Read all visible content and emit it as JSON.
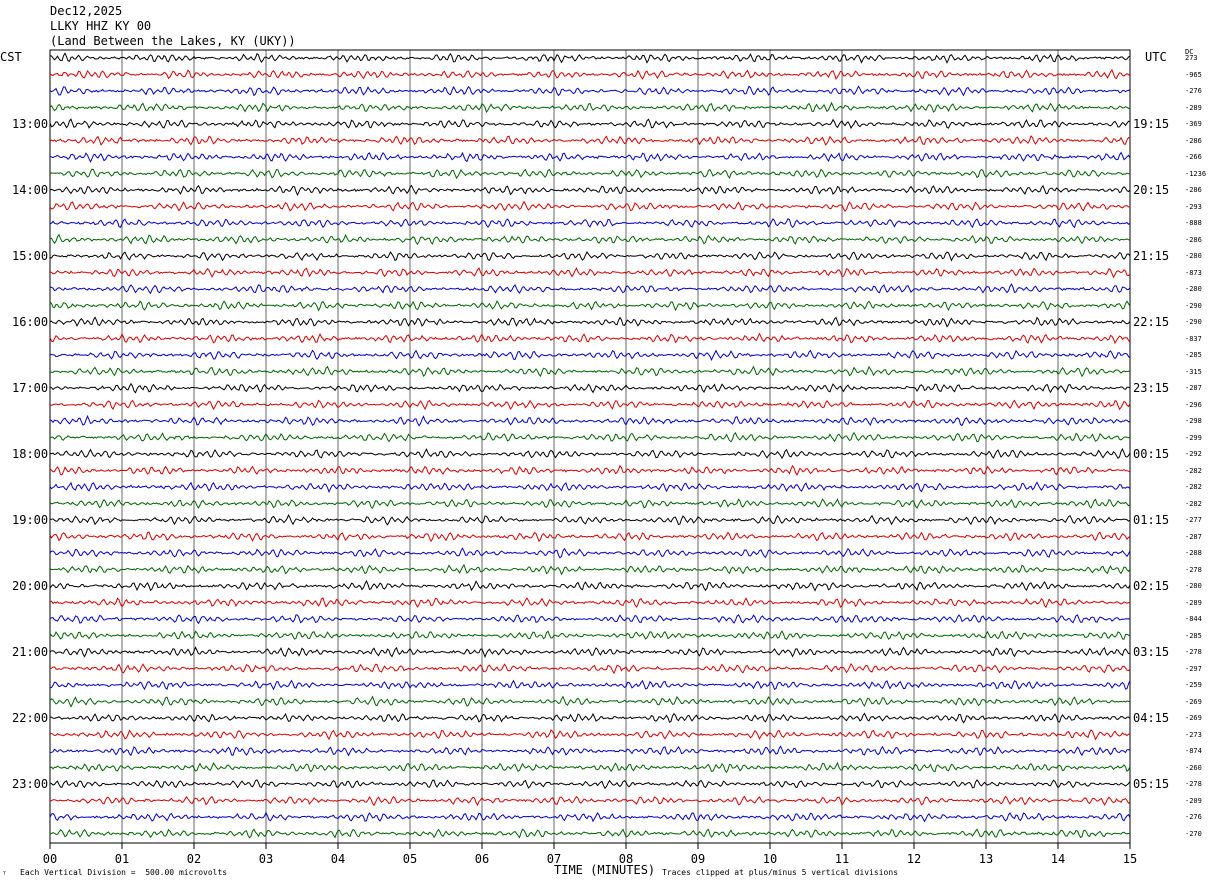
{
  "header": {
    "date": "Dec12,2025",
    "station": "LLKY HHZ KY 00",
    "location": "(Land Between the Lakes, KY (UKY))"
  },
  "left_axis_label": "CST",
  "right_axis_label": "UTC",
  "dc_label": "DC",
  "footer": {
    "scale_note": "Each Vertical Division =  500.00 microvolts",
    "clip_note": "Traces clipped at plus/minus 5 vertical divisions",
    "corner_mark": "ᵀ"
  },
  "colors": {
    "trace_cycle": [
      "#000000",
      "#d40000",
      "#0000c8",
      "#006400"
    ],
    "grid": "#000000",
    "background": "#ffffff"
  },
  "chart_data": {
    "type": "line",
    "title": "",
    "xlabel": "TIME (MINUTES)",
    "ylabel": "",
    "xlim": [
      0,
      15
    ],
    "x_ticks": [
      "00",
      "01",
      "02",
      "03",
      "04",
      "05",
      "06",
      "07",
      "08",
      "09",
      "10",
      "11",
      "12",
      "13",
      "14",
      "15"
    ],
    "trace_minutes": 15,
    "trace_count": 48,
    "left_hour_labels": [
      "13:00",
      "14:00",
      "15:00",
      "16:00",
      "17:00",
      "18:00",
      "19:00",
      "20:00",
      "21:00",
      "22:00",
      "23:00"
    ],
    "right_hour_labels": [
      "19:15",
      "20:15",
      "21:15",
      "22:15",
      "23:15",
      "00:15",
      "01:15",
      "02:15",
      "03:15",
      "04:15",
      "05:15"
    ],
    "dc_offsets": [
      "273",
      "-965",
      "-276",
      "-289",
      "-369",
      "-286",
      "-266",
      "-1236",
      "-286",
      "-293",
      "-888",
      "-286",
      "-280",
      "-873",
      "-280",
      "-290",
      "-290",
      "-837",
      "-285",
      "-315",
      "-287",
      "-296",
      "-298",
      "-299",
      "-292",
      "-282",
      "-282",
      "-282",
      "-277",
      "-287",
      "-288",
      "-278",
      "-280",
      "-289",
      "-844",
      "-285",
      "-278",
      "-297",
      "-259",
      "-269",
      "-269",
      "-273",
      "-874",
      "-260",
      "-278",
      "-209",
      "-276",
      "-270"
    ]
  }
}
